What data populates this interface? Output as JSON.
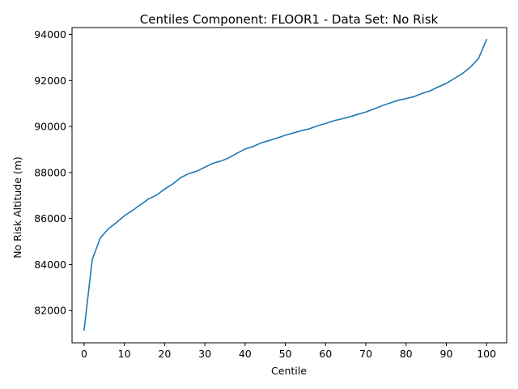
{
  "chart_data": {
    "type": "line",
    "title": "Centiles Component: FLOOR1 - Data Set: No Risk",
    "xlabel": "Centile",
    "ylabel": "No Risk Altitude (m)",
    "xlim": [
      -3,
      105
    ],
    "ylim": [
      80600,
      94300
    ],
    "xticks": [
      0,
      10,
      20,
      30,
      40,
      50,
      60,
      70,
      80,
      90,
      100
    ],
    "yticks": [
      82000,
      84000,
      86000,
      88000,
      90000,
      92000,
      94000
    ],
    "line_color": "#1f77b4",
    "grid": false,
    "legend": "none",
    "series": [
      {
        "x": [
          0,
          2,
          4,
          6,
          8,
          10,
          12,
          14,
          16,
          18,
          20,
          22,
          24,
          26,
          28,
          30,
          32,
          34,
          36,
          38,
          40,
          42,
          44,
          46,
          48,
          50,
          52,
          54,
          56,
          58,
          60,
          62,
          64,
          66,
          68,
          70,
          72,
          74,
          76,
          78,
          80,
          82,
          84,
          86,
          88,
          90,
          92,
          94,
          96,
          98,
          100
        ],
        "values": [
          81150,
          84200,
          85150,
          85550,
          85820,
          86120,
          86350,
          86600,
          86850,
          87020,
          87280,
          87500,
          87780,
          87950,
          88060,
          88230,
          88400,
          88500,
          88640,
          88840,
          89020,
          89130,
          89290,
          89390,
          89500,
          89620,
          89720,
          89820,
          89900,
          90030,
          90130,
          90250,
          90330,
          90420,
          90530,
          90630,
          90760,
          90900,
          91020,
          91140,
          91210,
          91300,
          91440,
          91550,
          91720,
          91870,
          92090,
          92300,
          92580,
          92950,
          93780
        ]
      }
    ]
  }
}
